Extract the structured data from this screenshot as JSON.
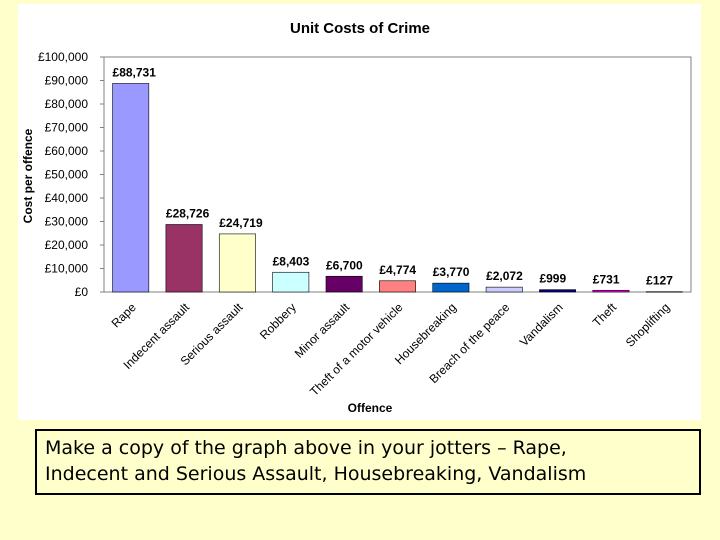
{
  "instruction": {
    "line1": "Make a copy of the graph above in your jotters – Rape,",
    "line2": "Indecent and Serious Assault, Housebreaking, Vandalism"
  },
  "chart_data": {
    "type": "bar",
    "title": "Unit Costs of Crime",
    "xlabel": "Offence",
    "ylabel": "Cost per offence",
    "ylim": [
      0,
      100000
    ],
    "ytick_values": [
      0,
      10000,
      20000,
      30000,
      40000,
      50000,
      60000,
      70000,
      80000,
      90000,
      100000
    ],
    "ytick_labels": [
      "£0",
      "£10,000",
      "£20,000",
      "£30,000",
      "£40,000",
      "£50,000",
      "£60,000",
      "£70,000",
      "£80,000",
      "£90,000",
      "£100,000"
    ],
    "grid": false,
    "legend": "none",
    "categories": [
      "Rape",
      "Indecent assault",
      "Serious assault",
      "Robbery",
      "Minor assault",
      "Theft of a motor vehicle",
      "Housebreaking",
      "Breach of the peace",
      "Vandalism",
      "Theft",
      "Shoplifting"
    ],
    "values": [
      88731,
      28726,
      24719,
      8403,
      6700,
      4774,
      3770,
      2072,
      999,
      731,
      127
    ],
    "data_labels": [
      "£88,731",
      "£28,726",
      "£24,719",
      "£8,403",
      "£6,700",
      "£4,774",
      "£3,770",
      "£2,072",
      "£999",
      "£731",
      "£127"
    ],
    "colors": [
      "#9999ff",
      "#993366",
      "#ffffcc",
      "#ccffff",
      "#660066",
      "#ff8080",
      "#0066cc",
      "#ccccff",
      "#000080",
      "#ff00ff",
      "#ffff00"
    ]
  }
}
